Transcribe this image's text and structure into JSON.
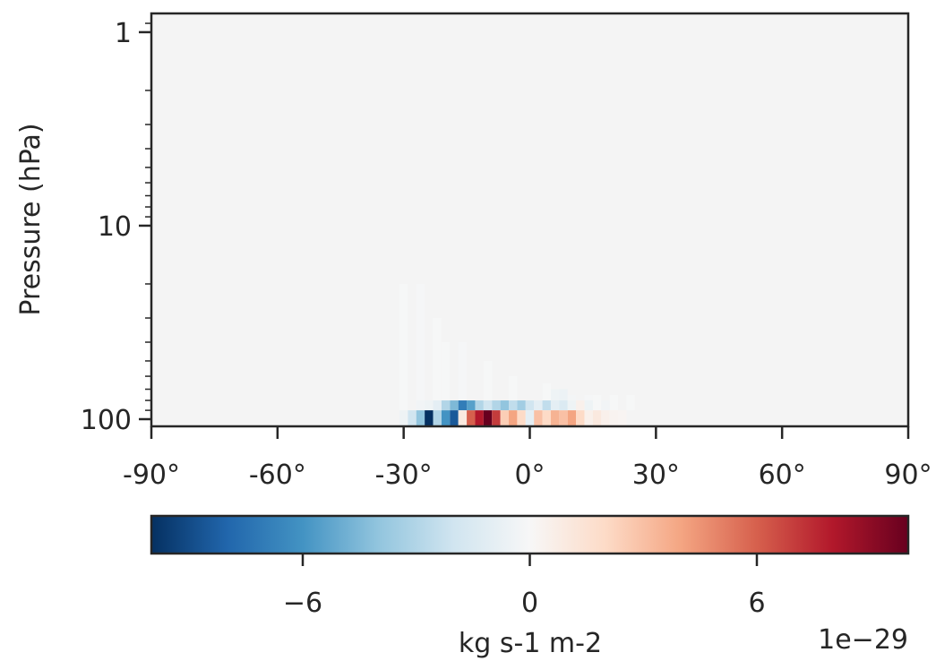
{
  "chart_data": {
    "type": "heatmap",
    "title": "",
    "xlabel": "",
    "ylabel": "Pressure (hPa)",
    "x_ticks": [
      "-90°",
      "-60°",
      "-30°",
      "0°",
      "30°",
      "60°",
      "90°"
    ],
    "x_tick_values": [
      -90,
      -60,
      -30,
      0,
      30,
      60,
      90
    ],
    "xlim": [
      -90,
      90
    ],
    "y_ticks": [
      "1",
      "10",
      "100"
    ],
    "y_tick_values": [
      1,
      10,
      100
    ],
    "ylim": [
      100,
      0.8
    ],
    "y_scale": "log",
    "y_inverted": true,
    "grid": false,
    "background_color": "#f4f4f4",
    "colorbar": {
      "label": "kg s-1 m-2",
      "ticks": [
        "−6",
        "0",
        "6"
      ],
      "tick_values": [
        -6,
        0,
        6
      ],
      "range": [
        -10,
        10
      ],
      "offset_text": "1e−29",
      "colormap": "RdBu_r",
      "colors": [
        "#053061",
        "#2166ac",
        "#4393c3",
        "#92c5de",
        "#d1e5f0",
        "#f7f7f7",
        "#fddbc7",
        "#f4a582",
        "#d6604d",
        "#b2182b",
        "#67001f"
      ]
    },
    "cells": [
      {
        "lat_start": -31,
        "lat_end": -29,
        "p_top": 20,
        "p_bottom": 100,
        "value": -0.05
      },
      {
        "lat_start": -27,
        "lat_end": -25,
        "p_top": 20,
        "p_bottom": 100,
        "value": -0.1
      },
      {
        "lat_start": -23,
        "lat_end": -21,
        "p_top": 30,
        "p_bottom": 100,
        "value": -0.05
      },
      {
        "lat_start": -21,
        "lat_end": -19,
        "p_top": 40,
        "p_bottom": 100,
        "value": -0.05
      },
      {
        "lat_start": -17,
        "lat_end": -15,
        "p_top": 40,
        "p_bottom": 100,
        "value": -0.1
      },
      {
        "lat_start": -11,
        "lat_end": -9,
        "p_top": 50,
        "p_bottom": 100,
        "value": -0.05
      },
      {
        "lat_start": -5,
        "lat_end": -3,
        "p_top": 60,
        "p_bottom": 100,
        "value": -0.05
      },
      {
        "lat_start": 3,
        "lat_end": 5,
        "p_top": 65,
        "p_bottom": 100,
        "value": -0.05
      },
      {
        "lat_start": 5,
        "lat_end": 7,
        "p_top": 70,
        "p_bottom": 90,
        "value": -0.5
      },
      {
        "lat_start": 7,
        "lat_end": 9,
        "p_top": 70,
        "p_bottom": 90,
        "value": -0.6
      },
      {
        "lat_start": 9,
        "lat_end": 11,
        "p_top": 75,
        "p_bottom": 90,
        "value": -0.2
      },
      {
        "lat_start": 13,
        "lat_end": 15,
        "p_top": 75,
        "p_bottom": 90,
        "value": -0.1
      },
      {
        "lat_start": 15,
        "lat_end": 17,
        "p_top": 75,
        "p_bottom": 90,
        "value": -0.05
      },
      {
        "lat_start": 19,
        "lat_end": 21,
        "p_top": 75,
        "p_bottom": 90,
        "value": -0.05
      },
      {
        "lat_start": 23,
        "lat_end": 25,
        "p_top": 75,
        "p_bottom": 90,
        "value": -0.05
      },
      {
        "lat_start": -27,
        "lat_end": -25,
        "p_top": 80,
        "p_bottom": 90,
        "value": -0.3
      },
      {
        "lat_start": -25,
        "lat_end": -23,
        "p_top": 80,
        "p_bottom": 90,
        "value": -0.5
      },
      {
        "lat_start": -23,
        "lat_end": -21,
        "p_top": 80,
        "p_bottom": 90,
        "value": -1.0
      },
      {
        "lat_start": -21,
        "lat_end": -19,
        "p_top": 80,
        "p_bottom": 90,
        "value": -3.0
      },
      {
        "lat_start": -19,
        "lat_end": -17,
        "p_top": 80,
        "p_bottom": 90,
        "value": -4.5
      },
      {
        "lat_start": -17,
        "lat_end": -15,
        "p_top": 80,
        "p_bottom": 90,
        "value": -7.0
      },
      {
        "lat_start": -15,
        "lat_end": -13,
        "p_top": 80,
        "p_bottom": 90,
        "value": -5.5
      },
      {
        "lat_start": -13,
        "lat_end": -11,
        "p_top": 80,
        "p_bottom": 90,
        "value": -3.0
      },
      {
        "lat_start": -11,
        "lat_end": -9,
        "p_top": 80,
        "p_bottom": 90,
        "value": -2.0
      },
      {
        "lat_start": -9,
        "lat_end": -7,
        "p_top": 80,
        "p_bottom": 90,
        "value": -3.0
      },
      {
        "lat_start": -7,
        "lat_end": -5,
        "p_top": 80,
        "p_bottom": 90,
        "value": -4.0
      },
      {
        "lat_start": -5,
        "lat_end": -3,
        "p_top": 80,
        "p_bottom": 90,
        "value": -2.5
      },
      {
        "lat_start": -3,
        "lat_end": -1,
        "p_top": 80,
        "p_bottom": 90,
        "value": -3.5
      },
      {
        "lat_start": -1,
        "lat_end": 1,
        "p_top": 80,
        "p_bottom": 90,
        "value": -2.0
      },
      {
        "lat_start": 1,
        "lat_end": 3,
        "p_top": 80,
        "p_bottom": 90,
        "value": -1.0
      },
      {
        "lat_start": 3,
        "lat_end": 5,
        "p_top": 80,
        "p_bottom": 90,
        "value": -2.5
      },
      {
        "lat_start": 5,
        "lat_end": 7,
        "p_top": 80,
        "p_bottom": 90,
        "value": -1.0
      },
      {
        "lat_start": 7,
        "lat_end": 9,
        "p_top": 80,
        "p_bottom": 90,
        "value": -1.5
      },
      {
        "lat_start": 9,
        "lat_end": 11,
        "p_top": 80,
        "p_bottom": 90,
        "value": -0.5
      },
      {
        "lat_start": 11,
        "lat_end": 13,
        "p_top": 80,
        "p_bottom": 90,
        "value": 0.5
      },
      {
        "lat_start": 13,
        "lat_end": 15,
        "p_top": 80,
        "p_bottom": 90,
        "value": -0.5
      },
      {
        "lat_start": 17,
        "lat_end": 19,
        "p_top": 80,
        "p_bottom": 90,
        "value": -0.3
      },
      {
        "lat_start": -31,
        "lat_end": -29,
        "p_top": 90,
        "p_bottom": 100,
        "value": -0.5
      },
      {
        "lat_start": -29,
        "lat_end": -27,
        "p_top": 90,
        "p_bottom": 100,
        "value": -2.0
      },
      {
        "lat_start": -27,
        "lat_end": -25,
        "p_top": 90,
        "p_bottom": 100,
        "value": -4.0
      },
      {
        "lat_start": -25,
        "lat_end": -23,
        "p_top": 90,
        "p_bottom": 100,
        "value": -10.0
      },
      {
        "lat_start": -23,
        "lat_end": -21,
        "p_top": 90,
        "p_bottom": 100,
        "value": -3.0
      },
      {
        "lat_start": -21,
        "lat_end": -19,
        "p_top": 90,
        "p_bottom": 100,
        "value": -6.0
      },
      {
        "lat_start": -19,
        "lat_end": -17,
        "p_top": 90,
        "p_bottom": 100,
        "value": -8.5
      },
      {
        "lat_start": -17,
        "lat_end": -15,
        "p_top": 90,
        "p_bottom": 100,
        "value": 1.0
      },
      {
        "lat_start": -15,
        "lat_end": -13,
        "p_top": 90,
        "p_bottom": 100,
        "value": 6.0
      },
      {
        "lat_start": -13,
        "lat_end": -11,
        "p_top": 90,
        "p_bottom": 100,
        "value": 8.0
      },
      {
        "lat_start": -11,
        "lat_end": -9,
        "p_top": 90,
        "p_bottom": 100,
        "value": 10.0
      },
      {
        "lat_start": -9,
        "lat_end": -7,
        "p_top": 90,
        "p_bottom": 100,
        "value": 7.0
      },
      {
        "lat_start": -7,
        "lat_end": -5,
        "p_top": 90,
        "p_bottom": 100,
        "value": 2.5
      },
      {
        "lat_start": -5,
        "lat_end": -3,
        "p_top": 90,
        "p_bottom": 100,
        "value": 4.0
      },
      {
        "lat_start": -3,
        "lat_end": -1,
        "p_top": 90,
        "p_bottom": 100,
        "value": 2.0
      },
      {
        "lat_start": -1,
        "lat_end": 1,
        "p_top": 90,
        "p_bottom": 100,
        "value": -1.0
      },
      {
        "lat_start": 1,
        "lat_end": 3,
        "p_top": 90,
        "p_bottom": 100,
        "value": 3.0
      },
      {
        "lat_start": 3,
        "lat_end": 5,
        "p_top": 90,
        "p_bottom": 100,
        "value": 2.0
      },
      {
        "lat_start": 5,
        "lat_end": 7,
        "p_top": 90,
        "p_bottom": 100,
        "value": 3.5
      },
      {
        "lat_start": 7,
        "lat_end": 9,
        "p_top": 90,
        "p_bottom": 100,
        "value": 3.0
      },
      {
        "lat_start": 9,
        "lat_end": 11,
        "p_top": 90,
        "p_bottom": 100,
        "value": 4.0
      },
      {
        "lat_start": 11,
        "lat_end": 13,
        "p_top": 90,
        "p_bottom": 100,
        "value": 2.0
      },
      {
        "lat_start": 13,
        "lat_end": 15,
        "p_top": 90,
        "p_bottom": 100,
        "value": 0.5
      },
      {
        "lat_start": 15,
        "lat_end": 17,
        "p_top": 90,
        "p_bottom": 100,
        "value": 1.0
      },
      {
        "lat_start": 17,
        "lat_end": 19,
        "p_top": 90,
        "p_bottom": 100,
        "value": 0.5
      },
      {
        "lat_start": 19,
        "lat_end": 21,
        "p_top": 90,
        "p_bottom": 100,
        "value": 0.3
      },
      {
        "lat_start": 21,
        "lat_end": 23,
        "p_top": 90,
        "p_bottom": 100,
        "value": 0.2
      }
    ]
  }
}
